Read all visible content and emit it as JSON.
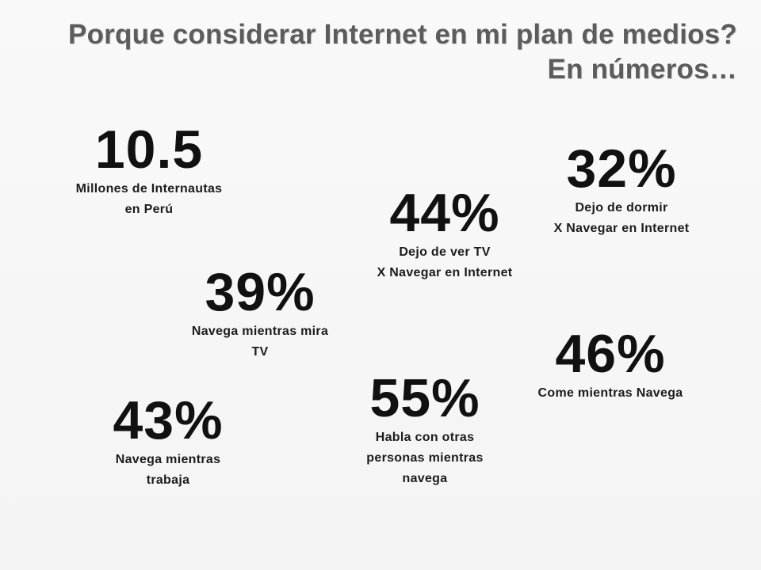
{
  "slide": {
    "title_line1": "Porque considerar Internet en mi plan de medios?",
    "title_line2": "En números…"
  },
  "stats": [
    {
      "value": "10.5",
      "caption_line1": "Millones de Internautas",
      "caption_line2": "en Perú"
    },
    {
      "value": "32%",
      "caption_line1": "Dejo de dormir",
      "caption_line2": "X Navegar en Internet"
    },
    {
      "value": "44%",
      "caption_line1": "Dejo de ver TV",
      "caption_line2": "X Navegar en Internet"
    },
    {
      "value": "39%",
      "caption_line1": "Navega mientras mira",
      "caption_line2": "TV"
    },
    {
      "value": "46%",
      "caption_line1": "Come mientras Navega"
    },
    {
      "value": "55%",
      "caption_line1": "Habla con otras",
      "caption_line2": "personas mientras",
      "caption_line3": "navega"
    },
    {
      "value": "43%",
      "caption_line1": "Navega mientras",
      "caption_line2": "trabaja"
    }
  ]
}
